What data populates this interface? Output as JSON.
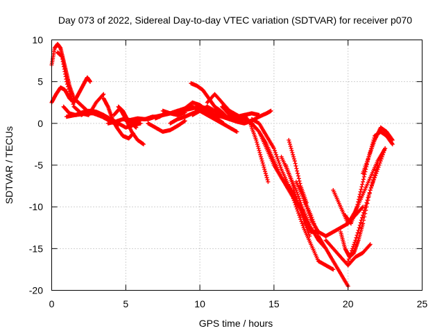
{
  "chart_data": {
    "type": "scatter",
    "title": "Day 073 of 2022, Sidereal Day-to-day VTEC variation (SDTVAR) for receiver p070",
    "xlabel": "GPS time / hours",
    "ylabel": "SDTVAR / TECUs",
    "xlim": [
      0,
      25
    ],
    "ylim": [
      -20,
      10
    ],
    "xticks": [
      0,
      5,
      10,
      15,
      20,
      25
    ],
    "yticks": [
      -20,
      -15,
      -10,
      -5,
      0,
      5,
      10
    ],
    "grid": true,
    "marker": "plus",
    "color": "#ff0000",
    "series": [
      {
        "x": [
          0.0,
          0.2,
          0.4,
          0.6,
          0.8,
          1.0,
          1.2,
          1.5,
          1.8,
          2.1,
          2.4,
          2.7
        ],
        "y": [
          7.0,
          9.0,
          9.5,
          9.0,
          7.5,
          6.0,
          4.5,
          3.0,
          2.5,
          2.0,
          1.5,
          1.2
        ]
      },
      {
        "x": [
          0.0,
          0.3,
          0.6,
          0.9,
          1.2,
          1.5,
          1.8,
          2.1,
          2.4,
          2.6
        ],
        "y": [
          2.5,
          3.5,
          4.3,
          4.0,
          3.0,
          2.5,
          3.5,
          4.5,
          5.5,
          5.0
        ]
      },
      {
        "x": [
          0.4,
          0.7,
          1.0,
          1.5,
          2.0,
          2.5,
          3.0,
          3.5
        ],
        "y": [
          8.5,
          8.0,
          5.0,
          2.0,
          1.2,
          1.0,
          2.5,
          3.5
        ]
      },
      {
        "x": [
          0.8,
          1.2,
          1.6,
          2.0,
          2.5,
          3.0
        ],
        "y": [
          2.0,
          1.2,
          1.0,
          1.1,
          1.4,
          1.3
        ]
      },
      {
        "x": [
          1.0,
          1.6,
          2.2,
          2.8,
          3.4,
          4.0,
          4.5
        ],
        "y": [
          0.8,
          1.0,
          1.4,
          1.2,
          0.8,
          0.2,
          -0.2
        ]
      },
      {
        "x": [
          2.0,
          2.5,
          3.0,
          3.5,
          4.0,
          4.5,
          5.0,
          5.5,
          6.0
        ],
        "y": [
          1.0,
          1.5,
          1.4,
          1.0,
          0.5,
          0.0,
          -0.5,
          -0.2,
          0.0
        ]
      },
      {
        "x": [
          3.5,
          3.8,
          4.1,
          4.4,
          4.8,
          5.2,
          5.5
        ],
        "y": [
          3.0,
          2.0,
          0.5,
          -0.5,
          -1.5,
          -1.8,
          -1.2
        ]
      },
      {
        "x": [
          3.8,
          4.3,
          4.8,
          5.3,
          5.8,
          6.3,
          6.8,
          7.3
        ],
        "y": [
          0.0,
          0.2,
          0.5,
          0.4,
          0.6,
          0.5,
          0.8,
          0.8
        ]
      },
      {
        "x": [
          4.2,
          4.6,
          5.0,
          5.4,
          5.8,
          6.2
        ],
        "y": [
          1.0,
          1.8,
          0.5,
          -1.0,
          -2.0,
          -2.5
        ]
      },
      {
        "x": [
          4.5,
          4.8,
          5.1,
          5.4,
          5.7
        ],
        "y": [
          2.0,
          1.5,
          0.5,
          0.0,
          -0.5
        ]
      },
      {
        "x": [
          5.5,
          6.0,
          6.5,
          7.0,
          7.5,
          8.0,
          8.5,
          9.0
        ],
        "y": [
          0.2,
          0.5,
          0.5,
          0.8,
          1.0,
          1.2,
          1.0,
          1.3
        ]
      },
      {
        "x": [
          6.5,
          7.0,
          7.5,
          8.0,
          8.5,
          9.0
        ],
        "y": [
          0.0,
          -0.5,
          -1.0,
          -0.8,
          -0.3,
          0.3
        ]
      },
      {
        "x": [
          7.0,
          7.5,
          8.0,
          8.5,
          9.0,
          9.5,
          10.0,
          10.5,
          11.0,
          11.5
        ],
        "y": [
          0.6,
          1.0,
          1.2,
          1.5,
          1.6,
          1.8,
          2.0,
          1.8,
          1.5,
          1.0
        ]
      },
      {
        "x": [
          7.5,
          8.0,
          8.5,
          9.0,
          9.5,
          10.0,
          10.5,
          11.0,
          11.5,
          12.0,
          12.5
        ],
        "y": [
          1.5,
          1.2,
          1.5,
          1.8,
          2.0,
          1.5,
          1.0,
          0.5,
          0.0,
          -0.5,
          -1.0
        ]
      },
      {
        "x": [
          8.0,
          8.5,
          9.0,
          9.5,
          10.0,
          10.5,
          11.0,
          11.5,
          12.0,
          12.5,
          13.0,
          13.5,
          14.0,
          14.5,
          14.8
        ],
        "y": [
          0.0,
          0.5,
          0.8,
          1.2,
          1.5,
          1.2,
          1.0,
          0.8,
          0.5,
          0.2,
          0.0,
          0.3,
          0.8,
          1.2,
          1.5
        ]
      },
      {
        "x": [
          8.5,
          9.0,
          9.5,
          10.0,
          10.5,
          11.0
        ],
        "y": [
          1.0,
          1.8,
          2.5,
          2.2,
          1.5,
          1.0
        ]
      },
      {
        "x": [
          9.4,
          9.8,
          10.2,
          10.6,
          11.0,
          11.4,
          11.8,
          12.2
        ],
        "y": [
          4.8,
          4.5,
          4.0,
          3.0,
          2.0,
          1.5,
          0.8,
          0.5
        ]
      },
      {
        "x": [
          9.5,
          10.0,
          10.5,
          11.0,
          11.5,
          12.0,
          12.5,
          13.0,
          13.5,
          14.0
        ],
        "y": [
          1.0,
          1.5,
          2.0,
          1.5,
          1.0,
          0.5,
          0.8,
          1.0,
          1.2,
          1.0
        ]
      },
      {
        "x": [
          10.0,
          10.4,
          10.8,
          11.2,
          11.6
        ],
        "y": [
          2.0,
          1.5,
          1.0,
          0.5,
          0.0
        ]
      },
      {
        "x": [
          10.5,
          11.0,
          11.5,
          12.0,
          12.5
        ],
        "y": [
          2.5,
          3.5,
          2.5,
          1.5,
          0.5
        ]
      },
      {
        "x": [
          11.5,
          12.0,
          12.5,
          13.0,
          13.5,
          14.0,
          14.5,
          15.0,
          15.5,
          16.0,
          16.5,
          17.0,
          17.5,
          18.0
        ],
        "y": [
          2.0,
          1.0,
          0.5,
          0.5,
          0.0,
          -1.0,
          -3.0,
          -5.0,
          -6.5,
          -7.5,
          -9.0,
          -11.0,
          -13.0,
          -13.0
        ]
      },
      {
        "x": [
          12.0,
          12.5,
          13.0,
          13.5,
          14.0,
          14.5,
          15.0,
          15.5,
          16.0,
          16.5,
          17.0
        ],
        "y": [
          1.5,
          1.0,
          0.5,
          0.0,
          -1.0,
          -2.5,
          -4.5,
          -6.5,
          -8.0,
          -9.5,
          -10.5
        ]
      },
      {
        "x": [
          13.0,
          13.4,
          13.8,
          14.2,
          14.6
        ],
        "y": [
          1.0,
          0.0,
          -2.0,
          -4.5,
          -7.0
        ]
      },
      {
        "x": [
          13.5,
          14.0,
          14.5,
          15.0,
          15.5,
          16.0,
          16.5,
          17.0,
          17.5,
          18.0,
          18.5,
          19.0
        ],
        "y": [
          0.5,
          0.0,
          -1.5,
          -3.0,
          -5.5,
          -7.5,
          -10.0,
          -12.5,
          -14.5,
          -16.5,
          -17.0,
          -17.5
        ]
      },
      {
        "x": [
          15.5,
          16.0,
          16.5,
          17.0,
          17.5,
          18.0,
          18.5
        ],
        "y": [
          -4.0,
          -6.0,
          -8.0,
          -10.5,
          -12.5,
          -14.0,
          -15.0
        ]
      },
      {
        "x": [
          15.8,
          16.2,
          16.6,
          17.0,
          17.4
        ],
        "y": [
          -5.0,
          -7.0,
          -9.5,
          -11.5,
          -13.5
        ]
      },
      {
        "x": [
          16.0,
          16.4,
          16.8,
          17.2
        ],
        "y": [
          -2.0,
          -4.5,
          -7.5,
          -9.5
        ]
      },
      {
        "x": [
          16.5,
          17.0,
          17.5,
          18.0,
          18.5,
          19.0,
          19.5,
          20.0
        ],
        "y": [
          -7.0,
          -9.0,
          -11.0,
          -13.5,
          -15.0,
          -16.5,
          -18.0,
          -19.5
        ]
      },
      {
        "x": [
          17.0,
          17.5,
          18.0,
          18.5,
          19.0,
          19.5,
          20.0,
          20.5,
          21.0
        ],
        "y": [
          -9.0,
          -11.5,
          -13.0,
          -13.5,
          -13.0,
          -12.5,
          -12.0,
          -11.0,
          -10.0
        ]
      },
      {
        "x": [
          18.5,
          19.0,
          19.5,
          20.0,
          20.5,
          21.0,
          21.5
        ],
        "y": [
          -14.0,
          -15.0,
          -16.0,
          -17.0,
          -16.0,
          -15.5,
          -14.5
        ]
      },
      {
        "x": [
          19.0,
          19.5,
          20.0,
          20.5,
          21.0,
          21.5,
          22.0,
          22.5
        ],
        "y": [
          -8.0,
          -10.0,
          -12.0,
          -10.5,
          -8.5,
          -6.5,
          -4.5,
          -3.0
        ]
      },
      {
        "x": [
          19.5,
          19.8,
          20.1,
          20.4,
          20.7,
          21.0
        ],
        "y": [
          -13.0,
          -15.0,
          -16.0,
          -15.5,
          -14.0,
          -12.0
        ]
      },
      {
        "x": [
          19.8,
          20.2,
          20.6,
          21.0,
          21.4,
          21.8,
          22.2,
          22.6,
          23.0
        ],
        "y": [
          -11.0,
          -12.0,
          -10.0,
          -7.0,
          -4.0,
          -1.5,
          -1.0,
          -1.5,
          -2.5
        ]
      },
      {
        "x": [
          20.0,
          20.5,
          21.0,
          21.5,
          22.0,
          22.5
        ],
        "y": [
          -16.5,
          -14.0,
          -11.0,
          -8.0,
          -5.5,
          -3.0
        ]
      },
      {
        "x": [
          21.0,
          21.4,
          21.8,
          22.2,
          22.6,
          23.0
        ],
        "y": [
          -6.0,
          -4.0,
          -2.0,
          -0.5,
          -1.0,
          -2.0
        ]
      },
      {
        "x": [
          21.0,
          21.5,
          22.0
        ],
        "y": [
          -12.0,
          -8.0,
          -5.0
        ]
      }
    ]
  }
}
